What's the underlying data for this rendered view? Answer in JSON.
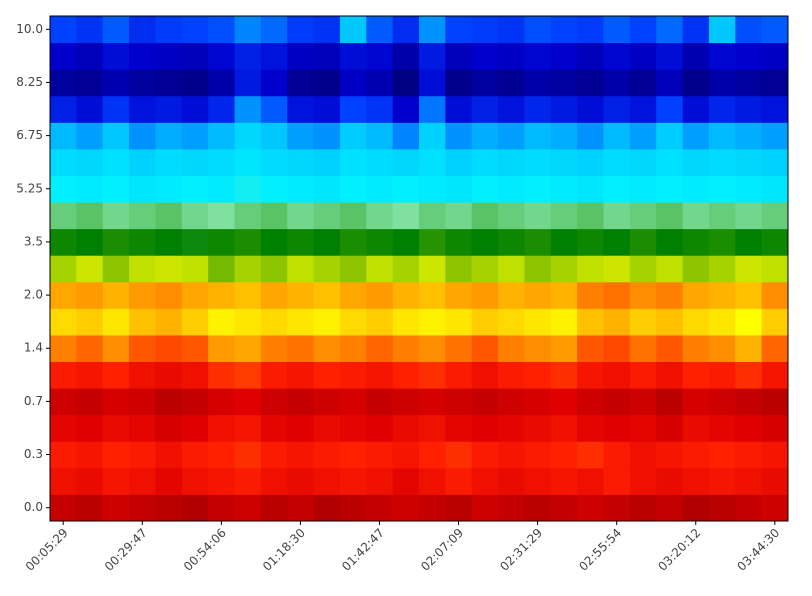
{
  "chart_data": {
    "type": "heatmap",
    "x": [
      "00:05:29",
      null,
      null,
      "00:29:47",
      null,
      null,
      "00:54:06",
      null,
      null,
      "01:18:30",
      null,
      null,
      "01:42:47",
      null,
      null,
      "02:07:09",
      null,
      null,
      "02:31:29",
      null,
      null,
      "02:55:54",
      null,
      null,
      "03:20:12",
      null,
      null,
      "03:44:30"
    ],
    "y": [
      "0.0",
      null,
      "0.3",
      null,
      "0.7",
      null,
      "1.4",
      null,
      "2.0",
      null,
      "3.5",
      null,
      "5.25",
      null,
      "6.75",
      null,
      "8.25",
      null,
      "10.0"
    ],
    "colorscale": [
      [
        0,
        "#000070"
      ],
      [
        0.1,
        "#0000cd"
      ],
      [
        0.2,
        "#0040ff"
      ],
      [
        0.3,
        "#00c8ff"
      ],
      [
        0.38,
        "#00f0ff"
      ],
      [
        0.45,
        "#80e0a0"
      ],
      [
        0.5,
        "#40b040"
      ],
      [
        0.55,
        "#008000"
      ],
      [
        0.6,
        "#40a000"
      ],
      [
        0.65,
        "#c0e000"
      ],
      [
        0.7,
        "#ffff00"
      ],
      [
        0.75,
        "#ffc000"
      ],
      [
        0.8,
        "#ff8000"
      ],
      [
        0.87,
        "#ff2000"
      ],
      [
        0.93,
        "#e00000"
      ],
      [
        1,
        "#a00000"
      ]
    ],
    "z": [
      [
        0.96,
        0.97,
        0.95,
        0.96,
        0.97,
        0.98,
        0.96,
        0.95,
        0.97,
        0.96,
        0.98,
        0.97,
        0.96,
        0.95,
        0.96,
        0.97,
        0.95,
        0.96,
        0.97,
        0.96,
        0.95,
        0.96,
        0.97,
        0.96,
        0.98,
        0.97,
        0.96,
        0.95
      ],
      [
        0.9,
        0.91,
        0.89,
        0.9,
        0.92,
        0.9,
        0.89,
        0.88,
        0.9,
        0.91,
        0.9,
        0.89,
        0.9,
        0.92,
        0.9,
        0.88,
        0.9,
        0.91,
        0.9,
        0.89,
        0.9,
        0.88,
        0.9,
        0.91,
        0.9,
        0.89,
        0.9,
        0.91
      ],
      [
        0.88,
        0.89,
        0.87,
        0.88,
        0.9,
        0.88,
        0.87,
        0.86,
        0.88,
        0.89,
        0.88,
        0.87,
        0.88,
        0.89,
        0.87,
        0.86,
        0.88,
        0.89,
        0.88,
        0.87,
        0.86,
        0.88,
        0.9,
        0.89,
        0.88,
        0.87,
        0.88,
        0.89
      ],
      [
        0.92,
        0.93,
        0.91,
        0.92,
        0.94,
        0.93,
        0.9,
        0.89,
        0.92,
        0.93,
        0.91,
        0.92,
        0.93,
        0.91,
        0.9,
        0.92,
        0.93,
        0.92,
        0.91,
        0.9,
        0.92,
        0.93,
        0.92,
        0.94,
        0.91,
        0.92,
        0.93,
        0.94
      ],
      [
        0.95,
        0.96,
        0.94,
        0.95,
        0.97,
        0.96,
        0.94,
        0.93,
        0.95,
        0.96,
        0.95,
        0.94,
        0.96,
        0.95,
        0.94,
        0.95,
        0.96,
        0.95,
        0.94,
        0.93,
        0.95,
        0.96,
        0.95,
        0.97,
        0.94,
        0.95,
        0.96,
        0.97
      ],
      [
        0.88,
        0.89,
        0.87,
        0.9,
        0.91,
        0.9,
        0.86,
        0.85,
        0.88,
        0.89,
        0.87,
        0.88,
        0.89,
        0.87,
        0.86,
        0.88,
        0.9,
        0.88,
        0.87,
        0.86,
        0.89,
        0.9,
        0.88,
        0.9,
        0.87,
        0.88,
        0.86,
        0.89
      ],
      [
        0.8,
        0.82,
        0.79,
        0.83,
        0.84,
        0.83,
        0.78,
        0.77,
        0.8,
        0.81,
        0.79,
        0.8,
        0.82,
        0.8,
        0.79,
        0.81,
        0.83,
        0.8,
        0.79,
        0.78,
        0.83,
        0.84,
        0.81,
        0.83,
        0.8,
        0.79,
        0.76,
        0.82
      ],
      [
        0.73,
        0.74,
        0.72,
        0.75,
        0.76,
        0.74,
        0.71,
        0.72,
        0.73,
        0.72,
        0.71,
        0.73,
        0.74,
        0.72,
        0.71,
        0.72,
        0.74,
        0.73,
        0.72,
        0.71,
        0.75,
        0.76,
        0.74,
        0.75,
        0.73,
        0.72,
        0.7,
        0.74
      ],
      [
        0.77,
        0.78,
        0.76,
        0.78,
        0.79,
        0.77,
        0.76,
        0.75,
        0.77,
        0.76,
        0.75,
        0.77,
        0.78,
        0.76,
        0.75,
        0.77,
        0.78,
        0.76,
        0.77,
        0.76,
        0.8,
        0.81,
        0.79,
        0.8,
        0.77,
        0.76,
        0.75,
        0.79
      ],
      [
        0.64,
        0.66,
        0.63,
        0.65,
        0.66,
        0.65,
        0.62,
        0.64,
        0.63,
        0.65,
        0.64,
        0.63,
        0.65,
        0.64,
        0.66,
        0.63,
        0.64,
        0.65,
        0.63,
        0.64,
        0.65,
        0.66,
        0.64,
        0.65,
        0.63,
        0.64,
        0.66,
        0.65
      ],
      [
        0.56,
        0.55,
        0.57,
        0.56,
        0.55,
        0.54,
        0.56,
        0.57,
        0.55,
        0.56,
        0.55,
        0.57,
        0.56,
        0.55,
        0.58,
        0.56,
        0.55,
        0.56,
        0.57,
        0.55,
        0.56,
        0.55,
        0.57,
        0.55,
        0.56,
        0.57,
        0.55,
        0.56
      ],
      [
        0.47,
        0.48,
        0.46,
        0.47,
        0.48,
        0.46,
        0.45,
        0.47,
        0.48,
        0.46,
        0.47,
        0.48,
        0.46,
        0.45,
        0.47,
        0.46,
        0.48,
        0.47,
        0.46,
        0.47,
        0.48,
        0.46,
        0.47,
        0.48,
        0.46,
        0.47,
        0.46,
        0.47
      ],
      [
        0.38,
        0.37,
        0.38,
        0.36,
        0.37,
        0.38,
        0.37,
        0.39,
        0.38,
        0.37,
        0.36,
        0.38,
        0.37,
        0.38,
        0.37,
        0.36,
        0.38,
        0.37,
        0.38,
        0.37,
        0.36,
        0.38,
        0.37,
        0.38,
        0.37,
        0.38,
        0.37,
        0.36
      ],
      [
        0.34,
        0.33,
        0.35,
        0.32,
        0.34,
        0.33,
        0.34,
        0.36,
        0.34,
        0.33,
        0.32,
        0.35,
        0.34,
        0.33,
        0.35,
        0.32,
        0.34,
        0.33,
        0.34,
        0.33,
        0.32,
        0.34,
        0.33,
        0.35,
        0.33,
        0.34,
        0.33,
        0.32
      ],
      [
        0.29,
        0.27,
        0.3,
        0.26,
        0.28,
        0.27,
        0.29,
        0.33,
        0.3,
        0.27,
        0.26,
        0.31,
        0.29,
        0.25,
        0.32,
        0.26,
        0.28,
        0.27,
        0.29,
        0.28,
        0.26,
        0.29,
        0.27,
        0.31,
        0.27,
        0.29,
        0.28,
        0.27
      ],
      [
        0.15,
        0.12,
        0.18,
        0.13,
        0.14,
        0.12,
        0.16,
        0.26,
        0.22,
        0.13,
        0.12,
        0.2,
        0.18,
        0.1,
        0.24,
        0.12,
        0.15,
        0.13,
        0.16,
        0.14,
        0.12,
        0.15,
        0.13,
        0.2,
        0.12,
        0.16,
        0.14,
        0.13
      ],
      [
        0.05,
        0.04,
        0.07,
        0.05,
        0.04,
        0.03,
        0.06,
        0.14,
        0.1,
        0.04,
        0.03,
        0.09,
        0.07,
        0.02,
        0.12,
        0.03,
        0.05,
        0.04,
        0.06,
        0.05,
        0.04,
        0.06,
        0.04,
        0.08,
        0.03,
        0.06,
        0.05,
        0.04
      ],
      [
        0.1,
        0.08,
        0.12,
        0.1,
        0.09,
        0.08,
        0.11,
        0.15,
        0.13,
        0.09,
        0.08,
        0.12,
        0.11,
        0.06,
        0.14,
        0.08,
        0.1,
        0.09,
        0.11,
        0.1,
        0.08,
        0.11,
        0.09,
        0.12,
        0.07,
        0.11,
        0.1,
        0.09
      ],
      [
        0.2,
        0.18,
        0.22,
        0.17,
        0.19,
        0.2,
        0.21,
        0.25,
        0.23,
        0.19,
        0.18,
        0.3,
        0.22,
        0.17,
        0.26,
        0.2,
        0.19,
        0.18,
        0.21,
        0.2,
        0.19,
        0.22,
        0.2,
        0.23,
        0.18,
        0.3,
        0.21,
        0.22
      ]
    ]
  }
}
